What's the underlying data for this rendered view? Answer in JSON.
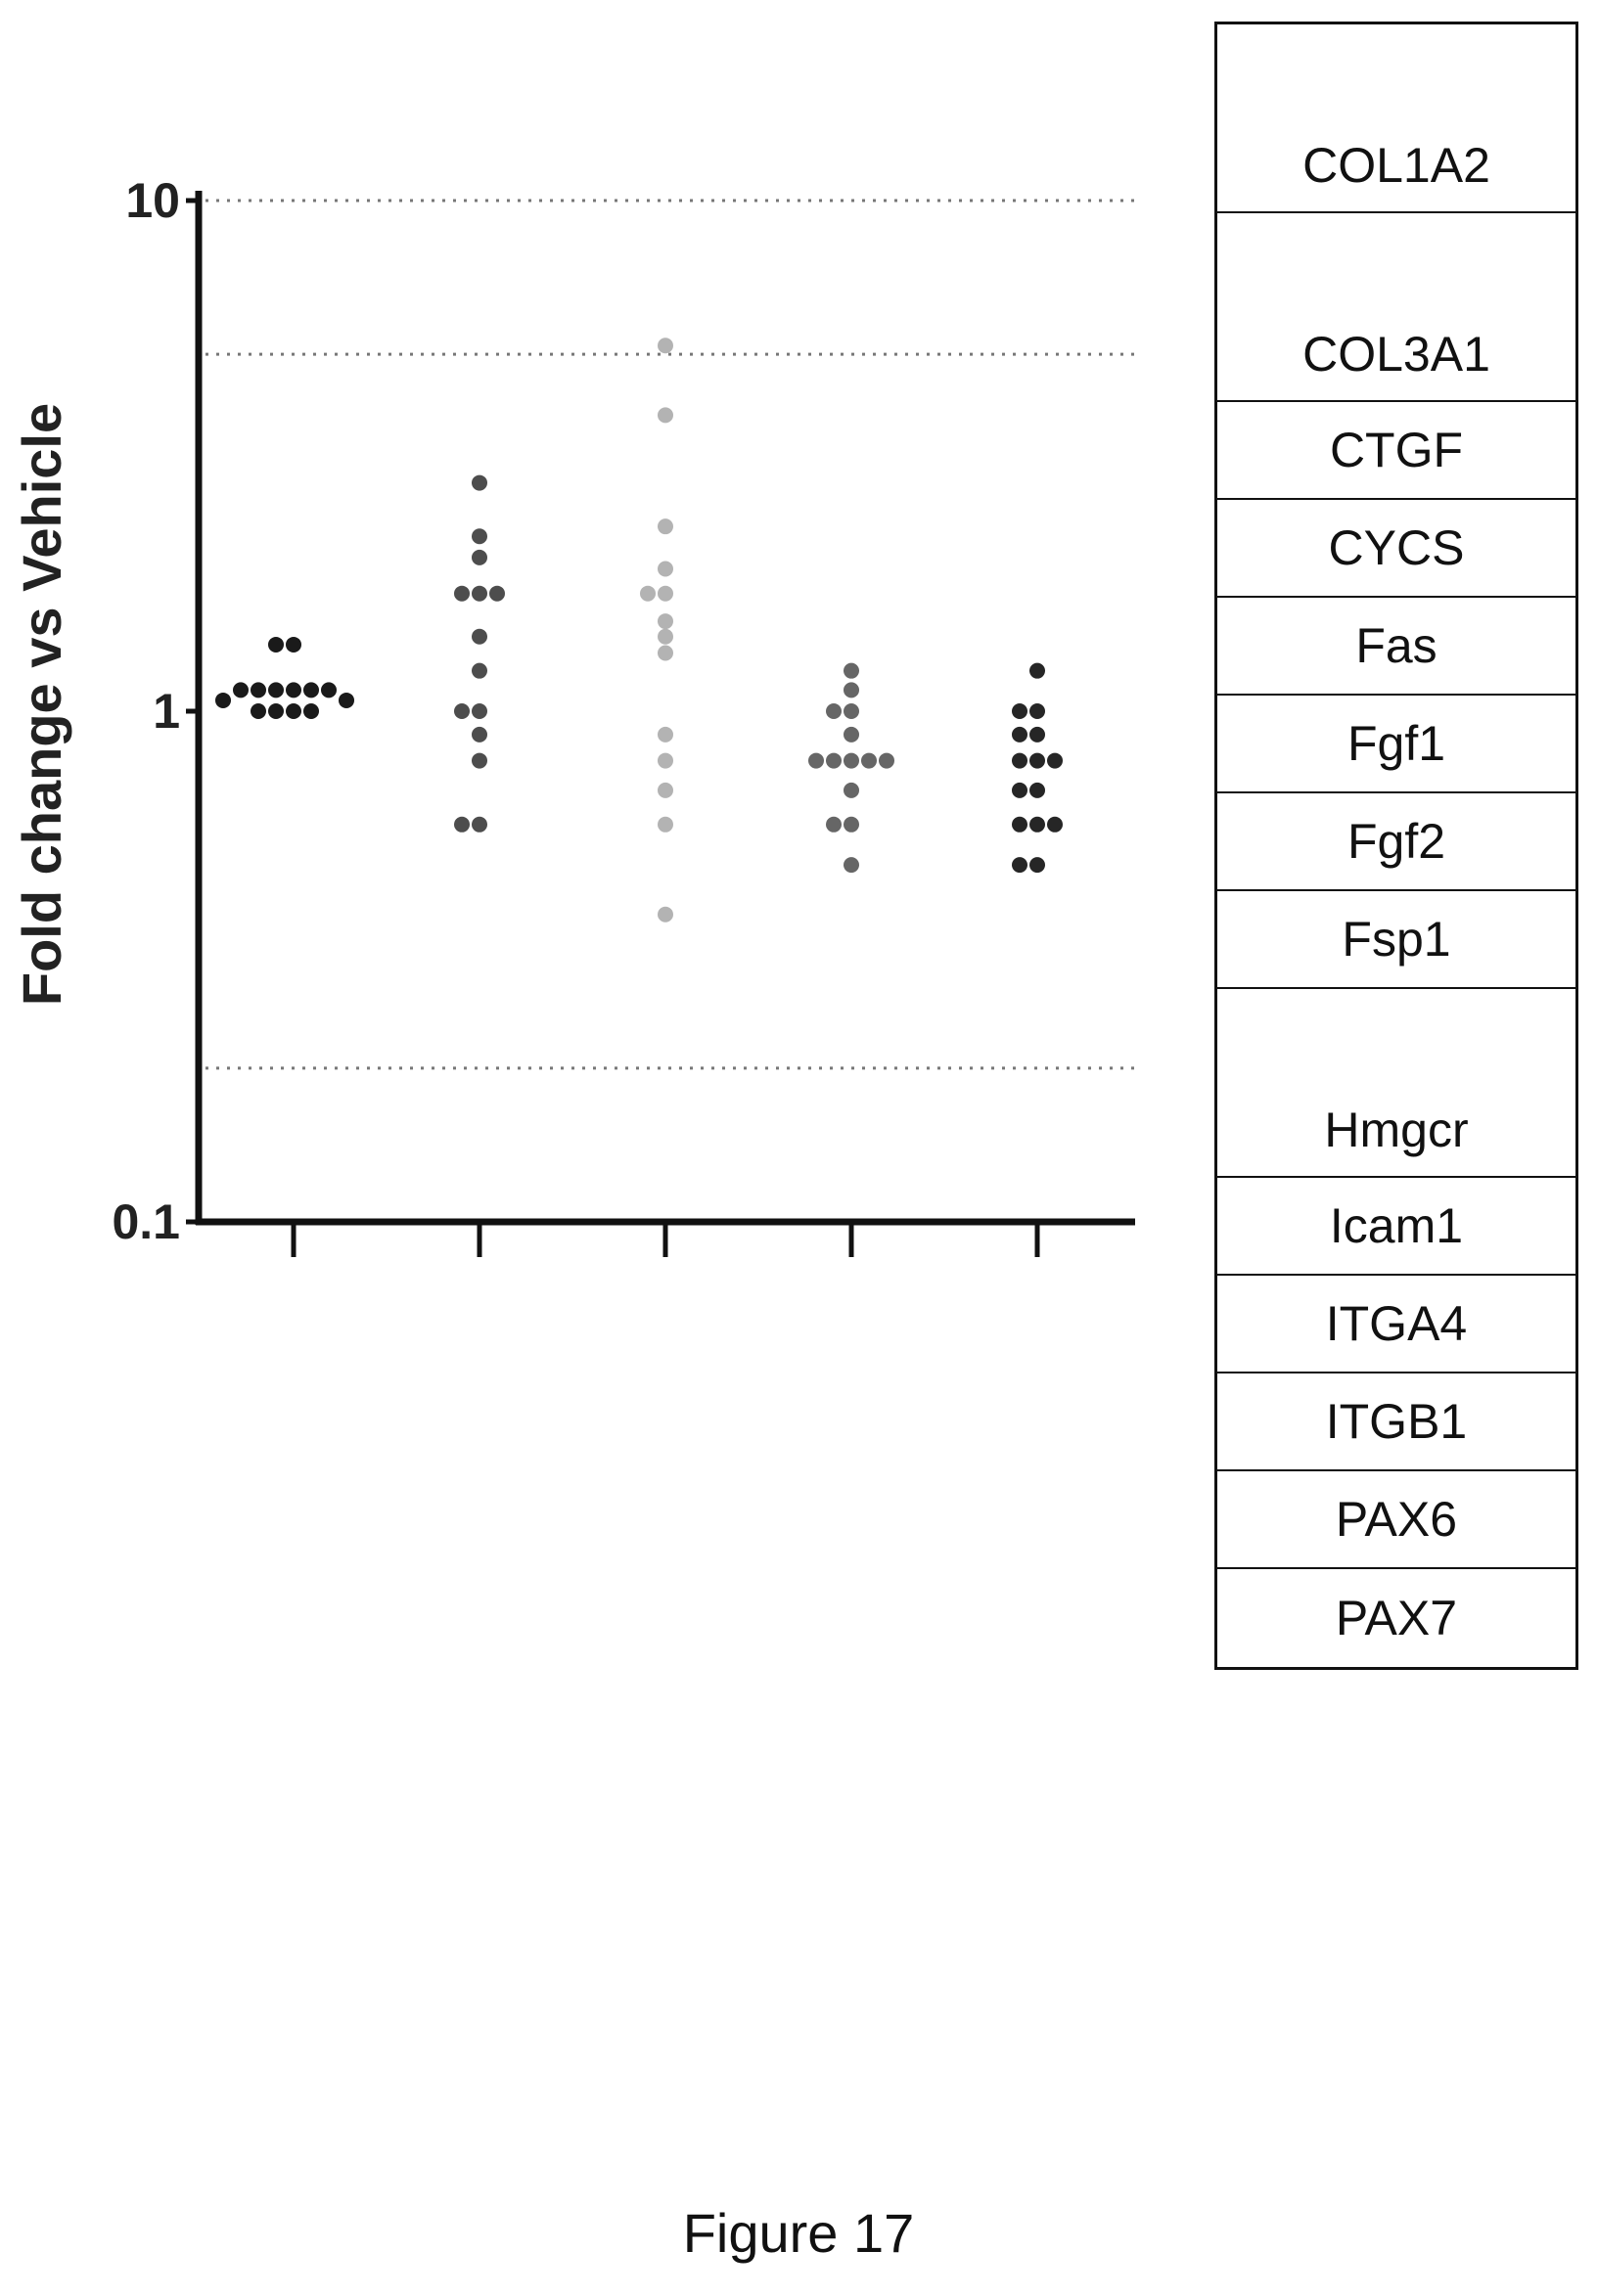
{
  "caption": "Figure 17",
  "chart_data": {
    "type": "scatter",
    "ylabel": "Fold change vs Vehicle",
    "yscale": "log",
    "ylim": [
      0.1,
      10
    ],
    "yticks": [
      {
        "value": 10,
        "label": "10"
      },
      {
        "value": 1,
        "label": "1"
      },
      {
        "value": 0.1,
        "label": "0.1"
      }
    ],
    "reference_lines": [
      10,
      5,
      0.2
    ],
    "groups": [
      {
        "color": "#1a1a1a",
        "values": [
          1.35,
          1.35,
          1.1,
          1.1,
          1.1,
          1.1,
          1.1,
          1.1,
          1.05,
          1.05,
          1.0,
          1.0,
          1.0,
          1.0
        ]
      },
      {
        "color": "#4d4d4d",
        "values": [
          2.8,
          2.2,
          2.0,
          1.7,
          1.7,
          1.7,
          1.4,
          1.2,
          1.0,
          1.0,
          0.9,
          0.8,
          0.6,
          0.6
        ]
      },
      {
        "color": "#b3b3b3",
        "values": [
          5.2,
          3.8,
          2.3,
          1.9,
          1.7,
          1.7,
          1.5,
          1.4,
          1.3,
          0.9,
          0.8,
          0.7,
          0.6,
          0.4
        ]
      },
      {
        "color": "#666666",
        "values": [
          1.2,
          1.1,
          1.0,
          1.0,
          0.9,
          0.8,
          0.8,
          0.8,
          0.8,
          0.8,
          0.7,
          0.6,
          0.6,
          0.5
        ]
      },
      {
        "color": "#262626",
        "values": [
          1.2,
          1.0,
          1.0,
          0.9,
          0.9,
          0.8,
          0.8,
          0.8,
          0.7,
          0.7,
          0.6,
          0.6,
          0.6,
          0.5,
          0.5
        ]
      }
    ]
  },
  "gene_table": [
    {
      "gene": "COL1A2"
    },
    {
      "gene": "COL3A1"
    },
    {
      "gene": "CTGF"
    },
    {
      "gene": "CYCS"
    },
    {
      "gene": "Fas"
    },
    {
      "gene": "Fgf1"
    },
    {
      "gene": "Fgf2"
    },
    {
      "gene": "Fsp1"
    },
    {
      "gene": "Hmgcr"
    },
    {
      "gene": "Icam1"
    },
    {
      "gene": "ITGA4"
    },
    {
      "gene": "ITGB1"
    },
    {
      "gene": "PAX6"
    },
    {
      "gene": "PAX7"
    }
  ]
}
